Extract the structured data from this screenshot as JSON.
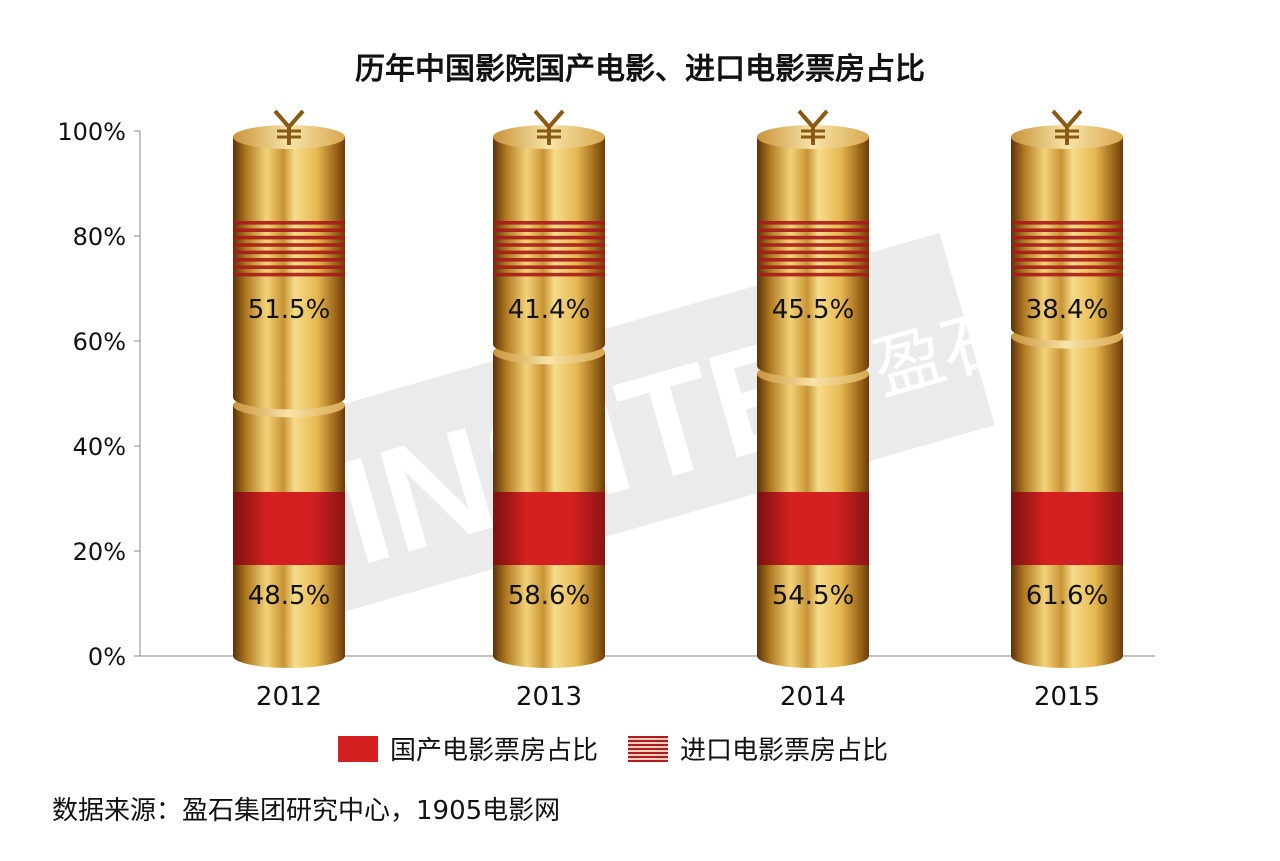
{
  "chart_data": {
    "type": "bar",
    "stacked": true,
    "title": "历年中国影院国产电影、进口电影票房占比",
    "categories": [
      "2012",
      "2013",
      "2014",
      "2015"
    ],
    "series": [
      {
        "name": "国产电影票房占比",
        "values": [
          48.5,
          58.6,
          54.5,
          61.6
        ],
        "labels": [
          "48.5%",
          "58.6%",
          "54.5%",
          "61.6%"
        ],
        "color": "#d42020"
      },
      {
        "name": "进口电影票房占比",
        "values": [
          51.5,
          41.4,
          45.5,
          38.4
        ],
        "labels": [
          "51.5%",
          "41.4%",
          "45.5%",
          "38.4%"
        ],
        "color": "#b01c1c"
      }
    ],
    "ylim": [
      0,
      100
    ],
    "yticks": [
      "0%",
      "20%",
      "40%",
      "60%",
      "80%",
      "100%"
    ],
    "grid": false,
    "legend_position": "bottom"
  },
  "source": "数据来源：盈石集团研究中心，1905电影网",
  "watermark": "INSITE 盈石"
}
